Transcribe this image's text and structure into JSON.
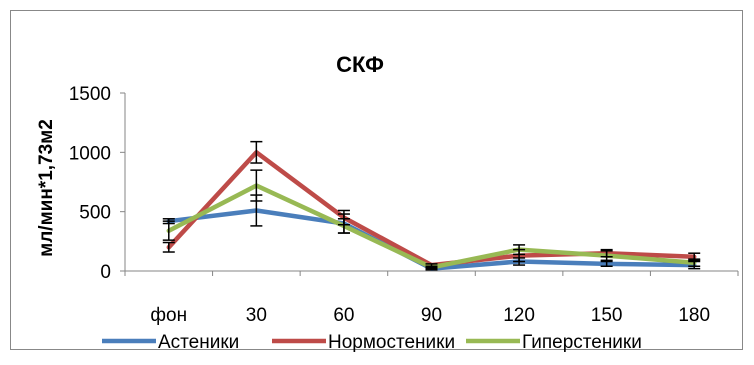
{
  "chart_data": {
    "type": "line",
    "title": "СКФ",
    "xlabel": "",
    "ylabel": "мл/мин*1,73м2",
    "categories": [
      "фон",
      "30",
      "60",
      "90",
      "120",
      "150",
      "180"
    ],
    "yticks": [
      "0",
      "500",
      "1000",
      "1500"
    ],
    "ylim": [
      0,
      1500
    ],
    "grid": false,
    "legend_position": "bottom",
    "series": [
      {
        "name": "Астеники",
        "color": "#4a7ebb",
        "values": [
          420,
          510,
          400,
          20,
          80,
          60,
          50
        ],
        "errors": [
          20,
          130,
          80,
          10,
          30,
          20,
          30
        ]
      },
      {
        "name": "Нормостеники",
        "color": "#be4b48",
        "values": [
          200,
          1000,
          450,
          50,
          130,
          150,
          120
        ],
        "errors": [
          40,
          90,
          60,
          10,
          50,
          30,
          30
        ]
      },
      {
        "name": "Гиперстеники",
        "color": "#98b954",
        "values": [
          340,
          720,
          380,
          30,
          180,
          130,
          70
        ],
        "errors": [
          80,
          130,
          60,
          10,
          40,
          40,
          30
        ]
      }
    ]
  }
}
